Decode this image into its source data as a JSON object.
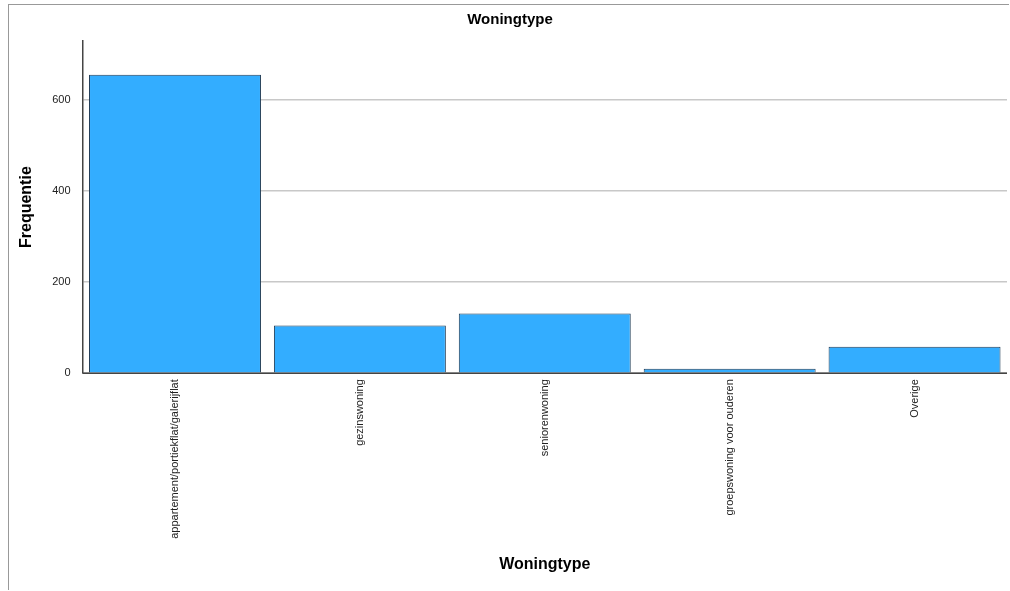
{
  "chart_data": {
    "type": "bar",
    "title": "Woningtype",
    "xlabel": "Woningtype",
    "ylabel": "Frequentie",
    "categories": [
      "appartement/portiekflat/galerijflat",
      "gezinswoning",
      "seniorenwoning",
      "groepswoning voor ouderen",
      "Overige"
    ],
    "values": [
      656,
      105,
      131,
      10,
      58
    ],
    "color": "#33adff",
    "ylim": [
      0,
      730
    ],
    "yticks": [
      0,
      200,
      400,
      600
    ],
    "grid": "y",
    "legend": false
  }
}
